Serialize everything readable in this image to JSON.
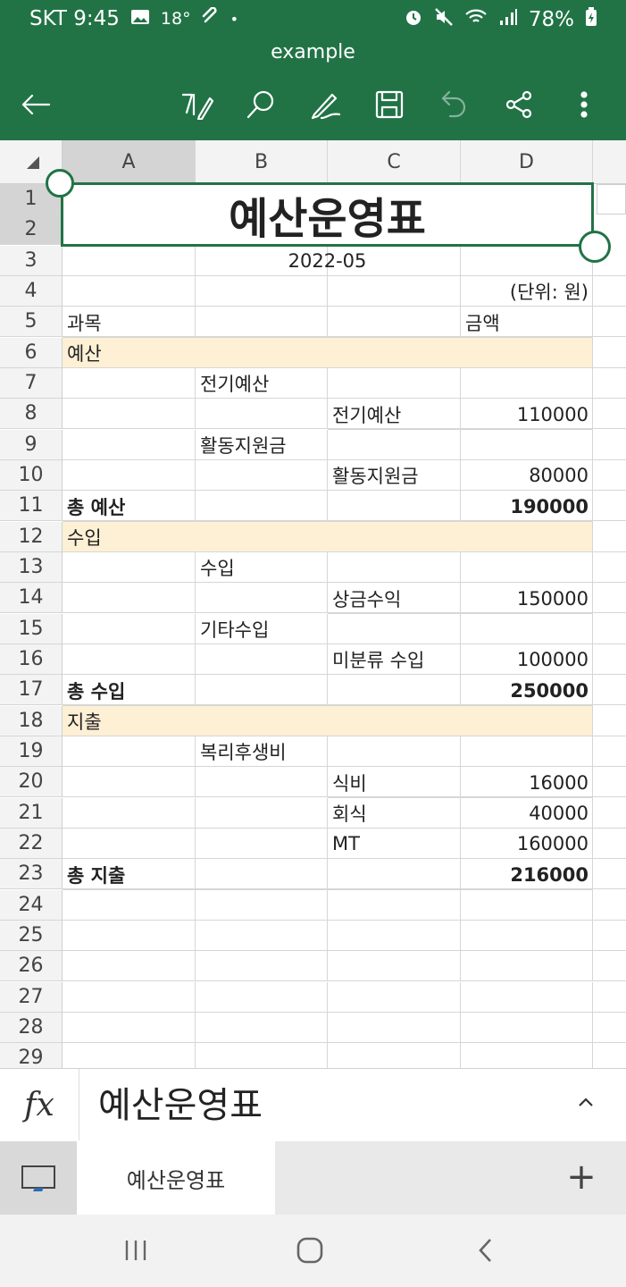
{
  "status_bar": {
    "carrier_time": "SKT 9:45",
    "temp": "18°",
    "dot": "•",
    "battery": "78%"
  },
  "header": {
    "title": "example"
  },
  "toolbar": {
    "icons": [
      "back-arrow-icon",
      "text-format-icon",
      "search-icon",
      "draw-icon",
      "save-icon",
      "undo-icon",
      "share-icon",
      "more-icon"
    ]
  },
  "columns": [
    "A",
    "B",
    "C",
    "D"
  ],
  "rows": [
    "1",
    "2",
    "3",
    "4",
    "5",
    "6",
    "7",
    "8",
    "9",
    "10",
    "11",
    "12",
    "13",
    "14",
    "15",
    "16",
    "17",
    "18",
    "19",
    "20",
    "21",
    "22",
    "23",
    "24",
    "25",
    "26",
    "27",
    "28",
    "29"
  ],
  "sheet": {
    "title": "예산운영표",
    "date": "2022-05",
    "unit": "(단위: 원)",
    "head_subject": "과목",
    "head_amount": "금액",
    "sec1": "예산",
    "r7b": "전기예산",
    "r8c": "전기예산",
    "r8d": "110000",
    "r9b": "활동지원금",
    "r10c": "활동지원금",
    "r10d": "80000",
    "r11a": "총 예산",
    "r11d": "190000",
    "sec2": "수입",
    "r13b": "수입",
    "r14c": "상금수익",
    "r14d": "150000",
    "r15b": "기타수입",
    "r16c": "미분류 수입",
    "r16d": "100000",
    "r17a": "총 수입",
    "r17d": "250000",
    "sec3": "지출",
    "r19b": "복리후생비",
    "r20c": "식비",
    "r20d": "16000",
    "r21c": "회식",
    "r21d": "40000",
    "r22c": "MT",
    "r22d": "160000",
    "r23a": "총 지출",
    "r23d": "216000"
  },
  "formula_bar": {
    "label": "fx",
    "value": "예산운영표"
  },
  "sheet_tabs": {
    "active": "예산운영표",
    "add": "+"
  },
  "colors": {
    "brand": "#217346",
    "section_fill": "#fdf0d5"
  }
}
